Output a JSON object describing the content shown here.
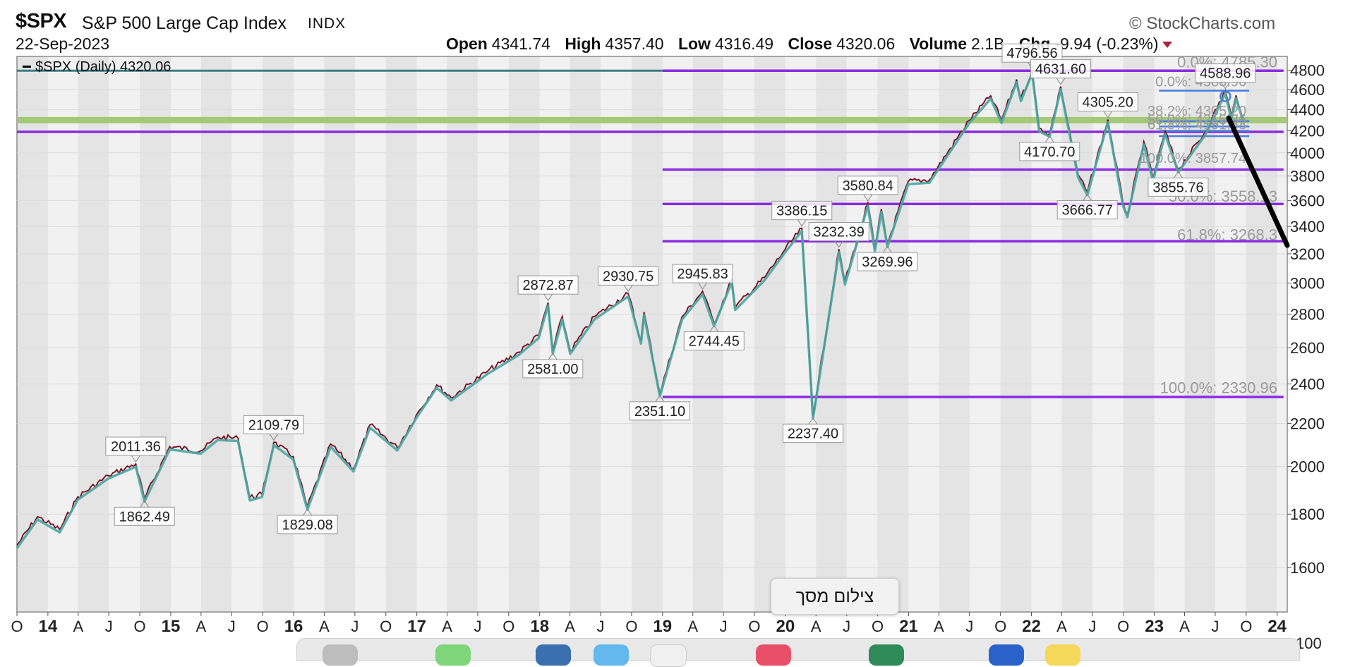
{
  "header": {
    "ticker": "$SPX",
    "name": "S&P 500 Large Cap Index",
    "exchange": "INDX",
    "date": "22-Sep-2023",
    "source": "© StockCharts.com",
    "open_label": "Open",
    "open": "4341.74",
    "high_label": "High",
    "high": "4357.40",
    "low_label": "Low",
    "low": "4316.49",
    "close_label": "Close",
    "close": "4320.06",
    "volume_label": "Volume",
    "volume": "2.1B",
    "chg_label": "Chg",
    "chg": "-9.94 (-0.23%)",
    "down_color": "#b0203a"
  },
  "tooltip": {
    "text": "צילום מסך"
  },
  "chart_data": {
    "type": "line",
    "legend": "$SPX (Daily) 4320.06",
    "legend_position": "top-left",
    "y_scale": "log",
    "ylim": [
      1450,
      4950
    ],
    "y_ticks": [
      1600,
      1800,
      2000,
      2200,
      2400,
      2600,
      2800,
      3000,
      3200,
      3400,
      3600,
      3800,
      4000,
      4200,
      4400,
      4600,
      4800
    ],
    "y_tick_extra": "100",
    "xlim": [
      "2013-10-01",
      "2024-01-31"
    ],
    "x_ticks": [
      {
        "label": "O",
        "date": "2013-10-01"
      },
      {
        "label": "14",
        "date": "2014-01-01"
      },
      {
        "label": "A",
        "date": "2014-04-01"
      },
      {
        "label": "J",
        "date": "2014-07-01"
      },
      {
        "label": "O",
        "date": "2014-10-01"
      },
      {
        "label": "15",
        "date": "2015-01-01"
      },
      {
        "label": "A",
        "date": "2015-04-01"
      },
      {
        "label": "J",
        "date": "2015-07-01"
      },
      {
        "label": "O",
        "date": "2015-10-01"
      },
      {
        "label": "16",
        "date": "2016-01-01"
      },
      {
        "label": "A",
        "date": "2016-04-01"
      },
      {
        "label": "J",
        "date": "2016-07-01"
      },
      {
        "label": "O",
        "date": "2016-10-01"
      },
      {
        "label": "17",
        "date": "2017-01-01"
      },
      {
        "label": "A",
        "date": "2017-04-01"
      },
      {
        "label": "J",
        "date": "2017-07-01"
      },
      {
        "label": "O",
        "date": "2017-10-01"
      },
      {
        "label": "18",
        "date": "2018-01-01"
      },
      {
        "label": "A",
        "date": "2018-04-01"
      },
      {
        "label": "J",
        "date": "2018-07-01"
      },
      {
        "label": "O",
        "date": "2018-10-01"
      },
      {
        "label": "19",
        "date": "2019-01-01"
      },
      {
        "label": "A",
        "date": "2019-04-01"
      },
      {
        "label": "J",
        "date": "2019-07-01"
      },
      {
        "label": "O",
        "date": "2019-10-01"
      },
      {
        "label": "20",
        "date": "2020-01-01"
      },
      {
        "label": "A",
        "date": "2020-04-01"
      },
      {
        "label": "J",
        "date": "2020-07-01"
      },
      {
        "label": "O",
        "date": "2020-10-01"
      },
      {
        "label": "21",
        "date": "2021-01-01"
      },
      {
        "label": "A",
        "date": "2021-04-01"
      },
      {
        "label": "J",
        "date": "2021-07-01"
      },
      {
        "label": "O",
        "date": "2021-10-01"
      },
      {
        "label": "22",
        "date": "2022-01-01"
      },
      {
        "label": "A",
        "date": "2022-04-01"
      },
      {
        "label": "J",
        "date": "2022-07-01"
      },
      {
        "label": "O",
        "date": "2022-10-01"
      },
      {
        "label": "23",
        "date": "2023-01-01"
      },
      {
        "label": "A",
        "date": "2023-04-01"
      },
      {
        "label": "J",
        "date": "2023-07-01"
      },
      {
        "label": "O",
        "date": "2023-10-01"
      },
      {
        "label": "24",
        "date": "2024-01-01"
      }
    ],
    "x_bold_labels": [
      "14",
      "15",
      "16",
      "17",
      "18",
      "19",
      "20",
      "21",
      "22",
      "23",
      "24"
    ],
    "colors": {
      "price": "#b01a35",
      "ma": "#4aa6a2",
      "horizontal_lines": "#8a2be2",
      "support_band": "#9bc46a",
      "top_line": "#3f7f85",
      "fib_short": "#4a7fd8",
      "trend": "#000000"
    },
    "series": [
      {
        "name": "$SPX (Daily)",
        "points": [
          {
            "x": "2013-10-01",
            "y": 1680
          },
          {
            "x": "2013-12-01",
            "y": 1790
          },
          {
            "x": "2014-02-05",
            "y": 1740
          },
          {
            "x": "2014-03-31",
            "y": 1870
          },
          {
            "x": "2014-06-30",
            "y": 1960
          },
          {
            "x": "2014-09-19",
            "y": 2011.36
          },
          {
            "x": "2014-10-15",
            "y": 1862.49
          },
          {
            "x": "2014-12-29",
            "y": 2090
          },
          {
            "x": "2015-03-31",
            "y": 2070
          },
          {
            "x": "2015-05-21",
            "y": 2134
          },
          {
            "x": "2015-07-20",
            "y": 2129
          },
          {
            "x": "2015-08-24",
            "y": 1867
          },
          {
            "x": "2015-09-29",
            "y": 1881
          },
          {
            "x": "2015-11-03",
            "y": 2109.79
          },
          {
            "x": "2015-12-31",
            "y": 2044
          },
          {
            "x": "2016-02-11",
            "y": 1829.08
          },
          {
            "x": "2016-04-20",
            "y": 2102
          },
          {
            "x": "2016-06-27",
            "y": 1991
          },
          {
            "x": "2016-08-15",
            "y": 2193
          },
          {
            "x": "2016-11-04",
            "y": 2085
          },
          {
            "x": "2016-12-30",
            "y": 2239
          },
          {
            "x": "2017-03-01",
            "y": 2395
          },
          {
            "x": "2017-04-13",
            "y": 2329
          },
          {
            "x": "2017-07-31",
            "y": 2470
          },
          {
            "x": "2017-10-31",
            "y": 2575
          },
          {
            "x": "2017-12-29",
            "y": 2673
          },
          {
            "x": "2018-01-26",
            "y": 2872.87
          },
          {
            "x": "2018-02-09",
            "y": 2581.0
          },
          {
            "x": "2018-03-09",
            "y": 2786
          },
          {
            "x": "2018-04-02",
            "y": 2581.88
          },
          {
            "x": "2018-06-13",
            "y": 2786
          },
          {
            "x": "2018-09-21",
            "y": 2930.75
          },
          {
            "x": "2018-10-29",
            "y": 2641
          },
          {
            "x": "2018-11-07",
            "y": 2813
          },
          {
            "x": "2018-12-24",
            "y": 2351.1
          },
          {
            "x": "2019-02-28",
            "y": 2784
          },
          {
            "x": "2019-04-30",
            "y": 2945.83
          },
          {
            "x": "2019-06-03",
            "y": 2744.45
          },
          {
            "x": "2019-07-26",
            "y": 3025
          },
          {
            "x": "2019-08-05",
            "y": 2844
          },
          {
            "x": "2019-10-31",
            "y": 3037
          },
          {
            "x": "2019-12-31",
            "y": 3230
          },
          {
            "x": "2020-02-19",
            "y": 3386.15
          },
          {
            "x": "2020-03-23",
            "y": 2237.4
          },
          {
            "x": "2020-06-08",
            "y": 3232.39
          },
          {
            "x": "2020-06-26",
            "y": 3009
          },
          {
            "x": "2020-09-02",
            "y": 3580.84
          },
          {
            "x": "2020-09-23",
            "y": 3236
          },
          {
            "x": "2020-10-12",
            "y": 3534
          },
          {
            "x": "2020-10-30",
            "y": 3269.96
          },
          {
            "x": "2020-12-31",
            "y": 3756
          },
          {
            "x": "2021-03-04",
            "y": 3768
          },
          {
            "x": "2021-06-30",
            "y": 4297
          },
          {
            "x": "2021-09-02",
            "y": 4537
          },
          {
            "x": "2021-10-04",
            "y": 4300
          },
          {
            "x": "2021-11-18",
            "y": 4704
          },
          {
            "x": "2021-12-01",
            "y": 4513
          },
          {
            "x": "2022-01-03",
            "y": 4796.56
          },
          {
            "x": "2022-01-24",
            "y": 4222
          },
          {
            "x": "2022-02-24",
            "y": 4170.7
          },
          {
            "x": "2022-03-29",
            "y": 4631.6
          },
          {
            "x": "2022-05-20",
            "y": 3810
          },
          {
            "x": "2022-06-16",
            "y": 3666.77
          },
          {
            "x": "2022-08-16",
            "y": 4305.2
          },
          {
            "x": "2022-09-30",
            "y": 3585
          },
          {
            "x": "2022-10-13",
            "y": 3491.58
          },
          {
            "x": "2022-12-01",
            "y": 4100
          },
          {
            "x": "2022-12-28",
            "y": 3783
          },
          {
            "x": "2023-02-02",
            "y": 4195
          },
          {
            "x": "2023-03-13",
            "y": 3855.76
          },
          {
            "x": "2023-05-31",
            "y": 4180
          },
          {
            "x": "2023-07-31",
            "y": 4588.96
          },
          {
            "x": "2023-08-18",
            "y": 4335
          },
          {
            "x": "2023-09-01",
            "y": 4541
          },
          {
            "x": "2023-09-22",
            "y": 4320.06
          }
        ]
      }
    ],
    "price_labels": [
      {
        "x": "2014-09-19",
        "y": 2011.36,
        "text": "2011.36",
        "pos": "above"
      },
      {
        "x": "2014-10-15",
        "y": 1862.49,
        "text": "1862.49",
        "pos": "below"
      },
      {
        "x": "2015-11-03",
        "y": 2109.79,
        "text": "2109.79",
        "pos": "above"
      },
      {
        "x": "2016-02-11",
        "y": 1829.08,
        "text": "1829.08",
        "pos": "below"
      },
      {
        "x": "2018-01-26",
        "y": 2872.87,
        "text": "2872.87",
        "pos": "above"
      },
      {
        "x": "2018-02-09",
        "y": 2581.0,
        "text": "2581.00",
        "pos": "below"
      },
      {
        "x": "2018-09-21",
        "y": 2930.75,
        "text": "2930.75",
        "pos": "above"
      },
      {
        "x": "2018-12-24",
        "y": 2351.1,
        "text": "2351.10",
        "pos": "below"
      },
      {
        "x": "2019-04-30",
        "y": 2945.83,
        "text": "2945.83",
        "pos": "above"
      },
      {
        "x": "2019-06-03",
        "y": 2744.45,
        "text": "2744.45",
        "pos": "below"
      },
      {
        "x": "2020-02-19",
        "y": 3386.15,
        "text": "3386.15",
        "pos": "above"
      },
      {
        "x": "2020-03-23",
        "y": 2237.4,
        "text": "2237.40",
        "pos": "below"
      },
      {
        "x": "2020-06-08",
        "y": 3232.39,
        "text": "3232.39",
        "pos": "above"
      },
      {
        "x": "2020-09-02",
        "y": 3580.84,
        "text": "3580.84",
        "pos": "above"
      },
      {
        "x": "2020-10-30",
        "y": 3269.96,
        "text": "3269.96",
        "pos": "below"
      },
      {
        "x": "2022-01-03",
        "y": 4796.56,
        "text": "4796.56",
        "pos": "above"
      },
      {
        "x": "2022-03-29",
        "y": 4631.6,
        "text": "4631.60",
        "pos": "above"
      },
      {
        "x": "2022-02-24",
        "y": 4170.7,
        "text": "4170.70",
        "pos": "below"
      },
      {
        "x": "2022-06-16",
        "y": 3666.77,
        "text": "3666.77",
        "pos": "below"
      },
      {
        "x": "2022-08-16",
        "y": 4305.2,
        "text": "4305.20",
        "pos": "above"
      },
      {
        "x": "2023-03-13",
        "y": 3855.76,
        "text": "3855.76",
        "pos": "below"
      },
      {
        "x": "2023-07-31",
        "y": 4588.96,
        "text": "4588.96",
        "pos": "above"
      }
    ],
    "horizontal_lines": [
      {
        "y": 4796.56,
        "from": "2019-01-01",
        "to": "2024-01-20"
      },
      {
        "y": 4190,
        "from": "2013-10-01",
        "to": "2024-01-20"
      },
      {
        "y": 3855,
        "from": "2019-01-01",
        "to": "2024-01-20"
      },
      {
        "y": 3573,
        "from": "2019-01-01",
        "to": "2024-01-20"
      },
      {
        "y": 3290,
        "from": "2019-01-01",
        "to": "2024-01-20"
      },
      {
        "y": 2332,
        "from": "2019-01-01",
        "to": "2024-01-20"
      }
    ],
    "top_line": {
      "y": 4796.56,
      "from": "2013-10-01",
      "to": "2019-01-01"
    },
    "support_band": {
      "y": 4300
    },
    "fib_levels": [
      {
        "text": "0.0%: 4785.30",
        "y": 4785.3
      },
      {
        "text": "61.8%: 3268.3",
        "y": 3268.3
      },
      {
        "text": "50.0%: 3558.13",
        "y": 3558.13
      },
      {
        "text": "100.0%: 2330.96",
        "y": 2330.96
      }
    ],
    "fib_short": {
      "levels_y": [
        4588.96,
        4290,
        4240,
        4200,
        4150
      ],
      "from": "2023-01-15",
      "to": "2023-10-10",
      "labels": [
        {
          "text": "0.0%: 4588.96",
          "y": 4620
        },
        {
          "text": "38.2%: 4305.20",
          "y": 4330
        },
        {
          "text": "50.0%: 4215.36",
          "y": 4245
        },
        {
          "text": "61.8%: 4191.58",
          "y": 4200
        },
        {
          "text": "100.0%: 3857.74",
          "y": 3900
        }
      ]
    },
    "trend_line": {
      "from": {
        "x": "2023-08-10",
        "y": 4320
      },
      "to": {
        "x": "2024-01-31",
        "y": 3260
      }
    },
    "marker": {
      "x": "2023-07-31",
      "y": 4588.96
    }
  }
}
